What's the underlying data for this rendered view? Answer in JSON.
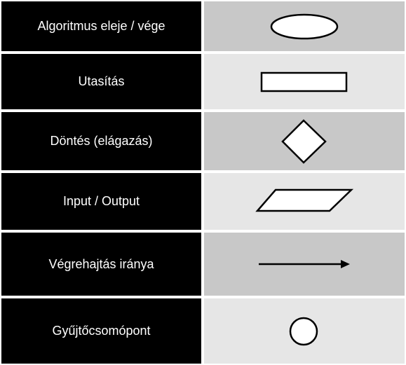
{
  "colors": {
    "label_background": "#000000",
    "label_text": "#ffffff",
    "symbol_background_dark": "#c8c8c8",
    "symbol_background_light": "#e6e6e6",
    "symbol_stroke": "#000000",
    "symbol_fill": "#ffffff"
  },
  "rows": [
    {
      "label": "Algoritmus eleje / vége",
      "symbol": "terminator-ellipse-icon"
    },
    {
      "label": "Utasítás",
      "symbol": "process-rectangle-icon"
    },
    {
      "label": "Döntés (elágazás)",
      "symbol": "decision-diamond-icon"
    },
    {
      "label": "Input / Output",
      "symbol": "io-parallelogram-icon"
    },
    {
      "label": "Végrehajtás iránya",
      "symbol": "flow-arrow-icon"
    },
    {
      "label": "Gyűjtőcsomópont",
      "symbol": "connector-circle-icon"
    }
  ]
}
